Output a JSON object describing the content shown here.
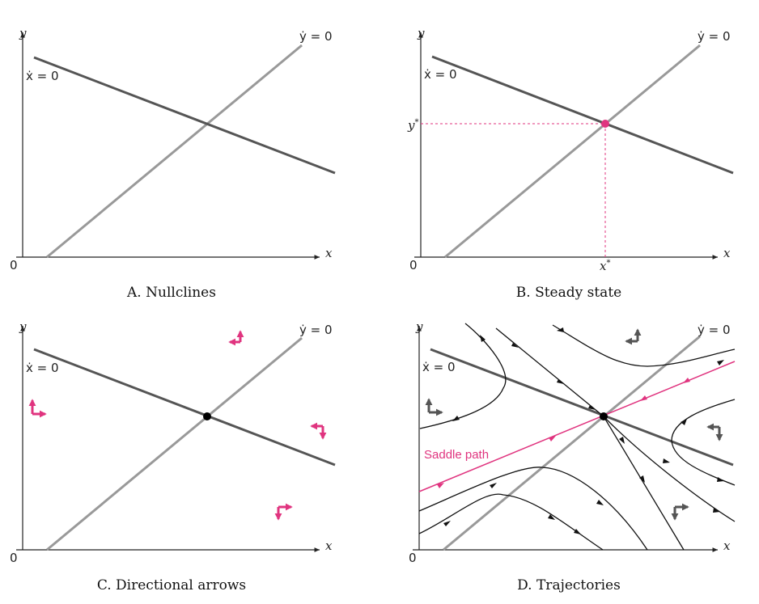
{
  "colors": {
    "accent": "#e0347f",
    "x_nullcline": "#555555",
    "y_nullcline": "#999999",
    "text": "#222222"
  },
  "labels": {
    "y": "y",
    "x": "x",
    "origin": "0",
    "xdot_null": "ẋ = 0",
    "ydot_null": "ẏ = 0",
    "y_star": "y",
    "x_star": "x",
    "star": "*",
    "saddle_path": "Saddle path"
  },
  "captions": {
    "a": "A. Nullclines",
    "b": "B. Steady state",
    "c": "C. Directional arrows",
    "d": "D. Trajectories"
  }
}
